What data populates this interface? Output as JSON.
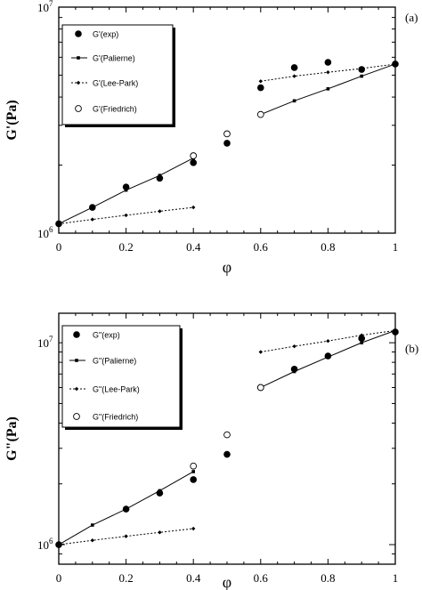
{
  "chart_data": [
    {
      "type": "scatter",
      "panel_label": "(a)",
      "ylabel": "G'(Pa)",
      "xlabel": "φ",
      "yscale": "log",
      "xlim": [
        0,
        1
      ],
      "ylim": [
        1000000,
        10000000
      ],
      "xticks": [
        "0",
        "0.2",
        "0.4",
        "0.6",
        "0.8",
        "1"
      ],
      "yticks": [
        {
          "base": "10",
          "exp": "6",
          "value": 1000000
        },
        {
          "base": "10",
          "exp": "7",
          "value": 10000000
        }
      ],
      "legend_position": "top-left",
      "grid": false,
      "series": [
        {
          "name": "G'(exp)",
          "style": "filled-circle",
          "x": [
            0,
            0.1,
            0.2,
            0.3,
            0.4,
            0.5,
            0.6,
            0.7,
            0.8,
            0.9,
            1.0
          ],
          "y": [
            1100000,
            1300000,
            1600000,
            1750000,
            2050000,
            2500000,
            4400000,
            5400000,
            5700000,
            5300000,
            5600000
          ]
        },
        {
          "name": "G'(Palierne)",
          "style": "solid-line-small-square",
          "x": [
            0,
            0.1,
            0.2,
            0.3,
            0.4,
            0.6,
            0.7,
            0.8,
            0.9,
            1.0
          ],
          "y": [
            1100000,
            1300000,
            1550000,
            1800000,
            2150000,
            3350000,
            3850000,
            4350000,
            4950000,
            5600000
          ]
        },
        {
          "name": "G'(Lee-Park)",
          "style": "dotted-line-small-diamond",
          "x": [
            0,
            0.1,
            0.2,
            0.3,
            0.4,
            0.6,
            0.7,
            0.8,
            0.9,
            1.0
          ],
          "y": [
            1100000,
            1150000,
            1200000,
            1250000,
            1300000,
            4700000,
            4950000,
            5150000,
            5350000,
            5600000
          ]
        },
        {
          "name": "G'(Friedrich)",
          "style": "open-circle",
          "x": [
            0.4,
            0.5,
            0.6
          ],
          "y": [
            2200000,
            2750000,
            3350000
          ]
        }
      ]
    },
    {
      "type": "scatter",
      "panel_label": "(b)",
      "ylabel": "G\"(Pa)",
      "xlabel": "φ",
      "yscale": "log",
      "xlim": [
        0,
        1
      ],
      "ylim": [
        800000,
        14000000
      ],
      "xticks": [
        "0",
        "0.2",
        "0.4",
        "0.6",
        "0.8",
        "1"
      ],
      "yticks": [
        {
          "base": "10",
          "exp": "6",
          "value": 1000000
        },
        {
          "base": "10",
          "exp": "7",
          "value": 10000000
        }
      ],
      "legend_position": "top-left",
      "grid": false,
      "series": [
        {
          "name": "G\"(exp)",
          "style": "filled-circle",
          "x": [
            0,
            0.2,
            0.3,
            0.4,
            0.5,
            0.6,
            0.7,
            0.8,
            0.9,
            1.0
          ],
          "y": [
            1000000,
            1500000,
            1800000,
            2100000,
            2800000,
            6000000,
            7400000,
            8600000,
            10500000,
            11300000
          ]
        },
        {
          "name": "G\"(Palierne)",
          "style": "solid-line-small-square",
          "x": [
            0,
            0.1,
            0.2,
            0.3,
            0.4,
            0.6,
            0.7,
            0.8,
            0.9,
            1.0
          ],
          "y": [
            1000000,
            1250000,
            1500000,
            1850000,
            2300000,
            6000000,
            7200000,
            8500000,
            10000000,
            11500000
          ]
        },
        {
          "name": "G\"(Lee-Park)",
          "style": "dotted-line-small-diamond",
          "x": [
            0,
            0.1,
            0.2,
            0.3,
            0.4,
            0.6,
            0.7,
            0.8,
            0.9,
            1.0
          ],
          "y": [
            1000000,
            1050000,
            1100000,
            1150000,
            1200000,
            9000000,
            9600000,
            10200000,
            10900000,
            11500000
          ]
        },
        {
          "name": "G\"(Friedrich)",
          "style": "open-circle",
          "x": [
            0.4,
            0.5,
            0.6
          ],
          "y": [
            2450000,
            3500000,
            6000000
          ]
        }
      ]
    }
  ]
}
